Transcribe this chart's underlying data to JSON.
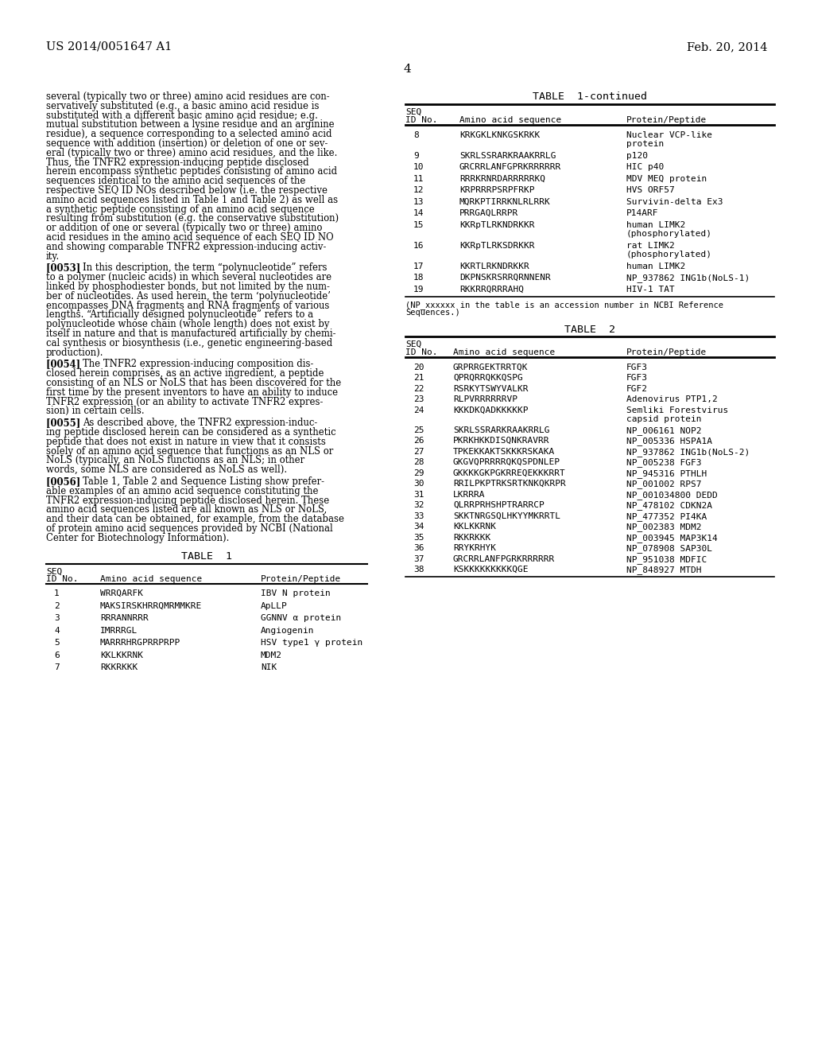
{
  "header_left": "US 2014/0051647 A1",
  "header_right": "Feb. 20, 2014",
  "page_number": "4",
  "background_color": "#ffffff",
  "table1_continued_rows": [
    [
      "8",
      "KRKGKLKNKGSKRKK",
      "Nuclear VCP-like\nprotein"
    ],
    [
      "9",
      "SKRLSSRARKRAAKRRLG",
      "p120"
    ],
    [
      "10",
      "GRCRRLANFGPRKRRRRRR",
      "HIC p40"
    ],
    [
      "11",
      "RRRKRNRDARRRRRKQ",
      "MDV MEQ protein"
    ],
    [
      "12",
      "KRPRRRPSRPFRKP",
      "HVS ORF57"
    ],
    [
      "13",
      "MQRKPTIRRKNLRLRRK",
      "Survivin-delta Ex3"
    ],
    [
      "14",
      "PRRGAQLRRPR",
      "P14ARF"
    ],
    [
      "15",
      "KKRpTLRKNDRKKR",
      "human LIMK2\n(phosphorylated)"
    ],
    [
      "16",
      "KKRpTLRKSDRKKR",
      "rat LIMK2\n(phosphorylated)"
    ],
    [
      "17",
      "KKRTLRKNDRKKR",
      "human LIMK2"
    ],
    [
      "18",
      "DKPNSKRSRRQRNNENR",
      "NP_937862 ING1b(NoLS-1)"
    ],
    [
      "19",
      "RKKRRQRRRAHQ",
      "HIV-1 TAT"
    ]
  ],
  "table1_footnote": "(NP_xxxxxx in the table is an accession number in NCBI Reference\nSequences.)",
  "table2_rows": [
    [
      "20",
      "GRPRRGEKTRRTQK",
      "FGF3"
    ],
    [
      "21",
      "QPRQRRQKKQSPG",
      "FGF3"
    ],
    [
      "22",
      "RSRKYTSWYVALKR",
      "FGF2"
    ],
    [
      "23",
      "RLPVRRRRRRVP",
      "Adenovirus PTP1,2"
    ],
    [
      "24",
      "KKKDKQADKKKKKP",
      "Semliki Forestvirus\ncapsid protein"
    ],
    [
      "25",
      "SKRLSSRARKRAAKRRLG",
      "NP_006161 NOP2"
    ],
    [
      "26",
      "PKRKHKKDISQNKRAVRR",
      "NP_005336 HSPA1A"
    ],
    [
      "27",
      "TPKEKKAKTSKKKRSKAKA",
      "NP_937862 ING1b(NoLS-2)"
    ],
    [
      "28",
      "GKGVQPRRRRQKQSPDNLEP",
      "NP_005238 FGF3"
    ],
    [
      "29",
      "GKKKKGKPGKRREQEKKKRRT",
      "NP_945316 PTHLH"
    ],
    [
      "30",
      "RRILPKPTRKSRTKNKQKRPR",
      "NP_001002 RPS7"
    ],
    [
      "31",
      "LKRRRA",
      "NP_001034800 DEDD"
    ],
    [
      "32",
      "QLRRPRHSHPTRARRCP",
      "NP_478102 CDKN2A"
    ],
    [
      "33",
      "SKKTNRGSQLHKYYMKRRTL",
      "NP_477352 PI4KA"
    ],
    [
      "34",
      "KKLKKRNK",
      "NP_002383 MDM2"
    ],
    [
      "35",
      "RKKRKKK",
      "NP_003945 MAP3K14"
    ],
    [
      "36",
      "RRYKRHYK",
      "NP_078908 SAP30L"
    ],
    [
      "37",
      "GRCRRLANFPGRKRRRRRR",
      "NP_951038 MDFIC"
    ],
    [
      "38",
      "KSKKKKKKKKKQGE",
      "NP_848927 MTDH"
    ]
  ],
  "left_paragraphs": [
    {
      "tag": "",
      "lines": [
        "several (typically two or three) amino acid residues are con-",
        "servatively substituted (e.g., a basic amino acid residue is",
        "substituted with a different basic amino acid residue; e.g.",
        "mutual substitution between a lysine residue and an arginine",
        "residue), a sequence corresponding to a selected amino acid",
        "sequence with addition (insertion) or deletion of one or sev-",
        "eral (typically two or three) amino acid residues, and the like.",
        "Thus, the TNFR2 expression-inducing peptide disclosed",
        "herein encompass synthetic peptides consisting of amino acid",
        "sequences identical to the amino acid sequences of the",
        "respective SEQ ID NOs described below (i.e. the respective",
        "amino acid sequences listed in Table 1 and Table 2) as well as",
        "a synthetic peptide consisting of an amino acid sequence",
        "resulting from substitution (e.g. the conservative substitution)",
        "or addition of one or several (typically two or three) amino",
        "acid residues in the amino acid sequence of each SEQ ID NO",
        "and showing comparable TNFR2 expression-inducing activ-",
        "ity."
      ]
    },
    {
      "tag": "[0053]",
      "lines": [
        "In this description, the term “polynucleotide” refers",
        "to a polymer (nucleic acids) in which several nucleotides are",
        "linked by phosphodiester bonds, but not limited by the num-",
        "ber of nucleotides. As used herein, the term ‘polynucleotide’",
        "encompasses DNA fragments and RNA fragments of various",
        "lengths. “Artificially designed polynucleotide” refers to a",
        "polynucleotide whose chain (whole length) does not exist by",
        "itself in nature and that is manufactured artificially by chemi-",
        "cal synthesis or biosynthesis (i.e., genetic engineering-based",
        "production)."
      ]
    },
    {
      "tag": "[0054]",
      "lines": [
        "The TNFR2 expression-inducing composition dis-",
        "closed herein comprises, as an active ingredient, a peptide",
        "consisting of an NLS or NoLS that has been discovered for the",
        "first time by the present inventors to have an ability to induce",
        "TNFR2 expression (or an ability to activate TNFR2 expres-",
        "sion) in certain cells."
      ]
    },
    {
      "tag": "[0055]",
      "lines": [
        "As described above, the TNFR2 expression-induc-",
        "ing peptide disclosed herein can be considered as a synthetic",
        "peptide that does not exist in nature in view that it consists",
        "solely of an amino acid sequence that functions as an NLS or",
        "NoLS (typically, an NoLS functions as an NLS; in other",
        "words, some NLS are considered as NoLS as well)."
      ]
    },
    {
      "tag": "[0056]",
      "lines": [
        "Table 1, Table 2 and Sequence Listing show prefer-",
        "able examples of an amino acid sequence constituting the",
        "TNFR2 expression-inducing peptide disclosed herein. These",
        "amino acid sequences listed are all known as NLS or NoLS,",
        "and their data can be obtained, for example, from the database",
        "of protein amino acid sequences provided by NCBI (National",
        "Center for Biotechnology Information)."
      ]
    }
  ],
  "table1_left_rows": [
    [
      "1",
      "WRRQARFK",
      "IBV N protein"
    ],
    [
      "2",
      "MAKSIRSKHRRQMRMMKRE",
      "ApLLP"
    ],
    [
      "3",
      "RRRANNRRR",
      "GGNNV α protein"
    ],
    [
      "4",
      "IMRRRGL",
      "Angiogenin"
    ],
    [
      "5",
      "MARRRHRGPRRPRPP",
      "HSV type1 γ protein"
    ],
    [
      "6",
      "KKLKKRNK",
      "MDM2"
    ],
    [
      "7",
      "RKKRKKK",
      "NIK"
    ]
  ]
}
